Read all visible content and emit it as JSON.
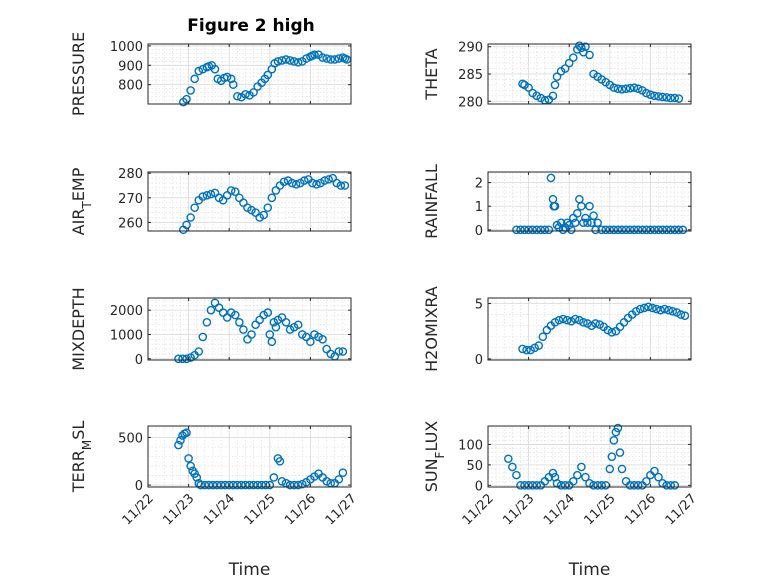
{
  "figure_title": "Figure 2 high",
  "colors": {
    "marker": "#0072bd",
    "axis": "#262626",
    "grid": "#d9d9d9"
  },
  "x_tick_labels": [
    "11/22",
    "11/23",
    "11/24",
    "11/25",
    "11/26",
    "11/27"
  ],
  "chart_data": [
    {
      "type": "scatter",
      "ylabel": "PRESSURE",
      "xlabel": "",
      "xlim": [
        0,
        5
      ],
      "ylim": [
        700,
        1010
      ],
      "yticks": [
        800,
        900,
        1000
      ],
      "yticklabels": [
        "800",
        "900",
        "1000"
      ],
      "grid": "major+minor",
      "show_xticklabels": false,
      "x": [
        0.87,
        0.95,
        1.05,
        1.15,
        1.25,
        1.35,
        1.45,
        1.5,
        1.57,
        1.65,
        1.72,
        1.8,
        1.88,
        1.95,
        2.05,
        2.1,
        2.2,
        2.3,
        2.4,
        2.5,
        2.6,
        2.7,
        2.8,
        2.88,
        2.95,
        3.05,
        3.12,
        3.2,
        3.3,
        3.4,
        3.5,
        3.6,
        3.7,
        3.8,
        3.9,
        4.0,
        4.05,
        4.1,
        4.2,
        4.3,
        4.4,
        4.5,
        4.6,
        4.7,
        4.8,
        4.85,
        4.9
      ],
      "y": [
        710,
        725,
        770,
        830,
        870,
        880,
        890,
        895,
        900,
        880,
        830,
        820,
        835,
        840,
        830,
        800,
        740,
        735,
        750,
        745,
        760,
        790,
        810,
        830,
        850,
        880,
        910,
        920,
        925,
        930,
        925,
        920,
        915,
        920,
        935,
        945,
        950,
        955,
        955,
        940,
        935,
        930,
        930,
        935,
        940,
        935,
        930
      ]
    },
    {
      "type": "scatter",
      "ylabel": "THETA",
      "xlabel": "",
      "xlim": [
        0,
        5
      ],
      "ylim": [
        279.5,
        290.5
      ],
      "yticks": [
        280,
        285,
        290
      ],
      "yticklabels": [
        "280",
        "285",
        "290"
      ],
      "grid": "major+minor",
      "show_xticklabels": false,
      "x": [
        0.85,
        0.9,
        1.0,
        1.1,
        1.2,
        1.3,
        1.4,
        1.5,
        1.6,
        1.65,
        1.7,
        1.8,
        1.9,
        2.0,
        2.1,
        2.2,
        2.25,
        2.3,
        2.35,
        2.4,
        2.5,
        2.6,
        2.7,
        2.8,
        2.9,
        3.0,
        3.1,
        3.2,
        3.3,
        3.4,
        3.5,
        3.6,
        3.7,
        3.8,
        3.9,
        4.0,
        4.1,
        4.2,
        4.3,
        4.4,
        4.5,
        4.6,
        4.7
      ],
      "y": [
        283.2,
        283.0,
        282.5,
        281.5,
        281.0,
        280.6,
        280.2,
        280.3,
        281.0,
        283.0,
        284.5,
        285.5,
        286.0,
        287.0,
        288.0,
        289.5,
        290.2,
        289.8,
        289.0,
        290.0,
        288.5,
        285.0,
        284.5,
        284.0,
        283.5,
        283.0,
        282.5,
        282.3,
        282.2,
        282.3,
        282.4,
        282.5,
        282.3,
        282.0,
        281.5,
        281.2,
        281.0,
        280.9,
        280.8,
        280.7,
        280.6,
        280.6,
        280.5
      ]
    },
    {
      "type": "scatter",
      "ylabel": "AIR_TEMP",
      "xlabel": "",
      "xlim": [
        0,
        5
      ],
      "ylim": [
        256.5,
        280.5
      ],
      "yticks": [
        260,
        270,
        280
      ],
      "yticklabels": [
        "260",
        "270",
        "280"
      ],
      "grid": "major+minor",
      "show_xticklabels": false,
      "x": [
        0.87,
        0.95,
        1.05,
        1.15,
        1.25,
        1.35,
        1.45,
        1.55,
        1.65,
        1.75,
        1.85,
        1.95,
        2.05,
        2.15,
        2.25,
        2.35,
        2.45,
        2.55,
        2.65,
        2.75,
        2.85,
        2.95,
        3.05,
        3.15,
        3.25,
        3.35,
        3.45,
        3.55,
        3.65,
        3.75,
        3.85,
        3.95,
        4.05,
        4.15,
        4.25,
        4.35,
        4.45,
        4.55,
        4.65,
        4.75,
        4.85
      ],
      "y": [
        257,
        259,
        262,
        266,
        269,
        270.5,
        271,
        271.5,
        272,
        270,
        269,
        271,
        273,
        272.5,
        270,
        268,
        266,
        265,
        264,
        262,
        263,
        266,
        270,
        273,
        275,
        276.5,
        277,
        276,
        275.5,
        276,
        277,
        277.5,
        276,
        275.5,
        276,
        277,
        277.5,
        278,
        276,
        275,
        275
      ]
    },
    {
      "type": "scatter",
      "ylabel": "RAINFALL",
      "xlabel": "",
      "xlim": [
        0,
        5
      ],
      "ylim": [
        -0.05,
        2.45
      ],
      "yticks": [
        0,
        1,
        2
      ],
      "yticklabels": [
        "0",
        "1",
        "2"
      ],
      "grid": "major+minor",
      "show_xticklabels": false,
      "x": [
        0.7,
        0.8,
        0.9,
        1.0,
        1.1,
        1.2,
        1.3,
        1.4,
        1.5,
        1.55,
        1.6,
        1.62,
        1.65,
        1.7,
        1.75,
        1.8,
        1.85,
        1.9,
        1.95,
        2.0,
        2.05,
        2.1,
        2.15,
        2.2,
        2.25,
        2.3,
        2.35,
        2.4,
        2.45,
        2.5,
        2.55,
        2.6,
        2.65,
        2.7,
        2.8,
        2.9,
        3.0,
        3.1,
        3.2,
        3.3,
        3.4,
        3.5,
        3.6,
        3.7,
        3.8,
        3.9,
        4.0,
        4.1,
        4.2,
        4.3,
        4.4,
        4.5,
        4.6,
        4.7,
        4.8
      ],
      "y": [
        0,
        0,
        0,
        0,
        0,
        0,
        0,
        0,
        0,
        2.2,
        1.3,
        1.0,
        1.0,
        0.2,
        0.1,
        0.3,
        0,
        0.1,
        0.3,
        0.2,
        0,
        0.5,
        0.3,
        0.7,
        1.3,
        1.0,
        0.3,
        0.5,
        0.3,
        1.0,
        0.3,
        0.6,
        0,
        0.3,
        0,
        0,
        0,
        0,
        0,
        0,
        0,
        0,
        0,
        0,
        0,
        0,
        0,
        0,
        0,
        0,
        0,
        0,
        0,
        0,
        0
      ]
    },
    {
      "type": "scatter",
      "ylabel": "MIXDEPTH",
      "xlabel": "",
      "xlim": [
        0,
        5
      ],
      "ylim": [
        -50,
        2500
      ],
      "yticks": [
        0,
        1000,
        2000
      ],
      "yticklabels": [
        "0",
        "1000",
        "2000"
      ],
      "grid": "major+minor",
      "show_xticklabels": false,
      "x": [
        0.75,
        0.85,
        0.95,
        1.05,
        1.15,
        1.25,
        1.35,
        1.45,
        1.55,
        1.65,
        1.75,
        1.85,
        1.95,
        2.05,
        2.15,
        2.25,
        2.35,
        2.45,
        2.55,
        2.65,
        2.75,
        2.85,
        2.95,
        3.0,
        3.05,
        3.1,
        3.15,
        3.2,
        3.3,
        3.4,
        3.5,
        3.6,
        3.7,
        3.8,
        3.9,
        4.0,
        4.1,
        4.2,
        4.3,
        4.4,
        4.5,
        4.6,
        4.7,
        4.8
      ],
      "y": [
        0,
        0,
        0,
        50,
        150,
        300,
        900,
        1500,
        2000,
        2300,
        2100,
        1900,
        1700,
        1900,
        1800,
        1500,
        1200,
        800,
        1000,
        1400,
        1600,
        1800,
        1900,
        1000,
        700,
        1500,
        1300,
        1600,
        1700,
        1500,
        1200,
        1300,
        1400,
        1000,
        900,
        700,
        1000,
        900,
        800,
        400,
        200,
        100,
        300,
        300
      ]
    },
    {
      "type": "scatter",
      "ylabel": "H2OMIXRA",
      "xlabel": "",
      "xlim": [
        0,
        5
      ],
      "ylim": [
        -0.1,
        5.5
      ],
      "yticks": [
        0,
        5
      ],
      "yticklabels": [
        "0",
        "5"
      ],
      "grid": "major+minor",
      "show_xticklabels": false,
      "x": [
        0.85,
        0.95,
        1.05,
        1.15,
        1.25,
        1.35,
        1.45,
        1.55,
        1.65,
        1.75,
        1.85,
        1.95,
        2.05,
        2.15,
        2.25,
        2.35,
        2.45,
        2.55,
        2.65,
        2.75,
        2.85,
        2.95,
        3.05,
        3.15,
        3.25,
        3.35,
        3.45,
        3.55,
        3.65,
        3.75,
        3.85,
        3.95,
        4.05,
        4.15,
        4.25,
        4.35,
        4.45,
        4.55,
        4.65,
        4.75,
        4.85
      ],
      "y": [
        0.9,
        0.8,
        0.8,
        1.0,
        1.2,
        2.0,
        2.6,
        3.0,
        3.3,
        3.5,
        3.6,
        3.5,
        3.4,
        3.6,
        3.5,
        3.3,
        3.2,
        3.0,
        3.2,
        3.1,
        2.9,
        2.6,
        2.4,
        2.5,
        2.9,
        3.3,
        3.7,
        4.0,
        4.3,
        4.5,
        4.6,
        4.7,
        4.6,
        4.5,
        4.4,
        4.5,
        4.4,
        4.3,
        4.2,
        4.0,
        3.9
      ]
    },
    {
      "type": "scatter",
      "ylabel": "TERR_MSL",
      "xlabel": "Time",
      "xlim": [
        0,
        5
      ],
      "ylim": [
        -20,
        620
      ],
      "yticks": [
        0,
        500
      ],
      "yticklabels": [
        "0",
        "500"
      ],
      "grid": "major+minor",
      "show_xticklabels": true,
      "x": [
        0.75,
        0.8,
        0.85,
        0.9,
        0.95,
        1.0,
        1.05,
        1.1,
        1.15,
        1.2,
        1.25,
        1.3,
        1.4,
        1.5,
        1.6,
        1.7,
        1.8,
        1.9,
        2.0,
        2.1,
        2.2,
        2.3,
        2.4,
        2.5,
        2.6,
        2.7,
        2.8,
        2.9,
        3.0,
        3.1,
        3.2,
        3.25,
        3.3,
        3.4,
        3.5,
        3.6,
        3.7,
        3.8,
        3.9,
        4.0,
        4.1,
        4.2,
        4.3,
        4.4,
        4.5,
        4.6,
        4.7,
        4.8
      ],
      "y": [
        420,
        470,
        520,
        540,
        550,
        280,
        200,
        150,
        120,
        80,
        20,
        0,
        0,
        0,
        0,
        0,
        0,
        0,
        0,
        0,
        0,
        0,
        0,
        0,
        0,
        0,
        0,
        0,
        0,
        80,
        280,
        250,
        40,
        20,
        0,
        0,
        0,
        10,
        30,
        60,
        90,
        120,
        80,
        40,
        20,
        20,
        60,
        130
      ]
    },
    {
      "type": "scatter",
      "ylabel": "SUN_FLUX",
      "xlabel": "Time",
      "xlim": [
        0,
        5
      ],
      "ylim": [
        -4,
        145
      ],
      "yticks": [
        0,
        50,
        100
      ],
      "yticklabels": [
        "0",
        "50",
        "100"
      ],
      "grid": "major+minor",
      "show_xticklabels": true,
      "x": [
        0.5,
        0.6,
        0.7,
        0.8,
        0.9,
        1.0,
        1.1,
        1.2,
        1.3,
        1.4,
        1.5,
        1.6,
        1.65,
        1.7,
        1.8,
        1.9,
        2.0,
        2.1,
        2.2,
        2.3,
        2.4,
        2.5,
        2.6,
        2.7,
        2.8,
        2.9,
        3.0,
        3.05,
        3.1,
        3.15,
        3.2,
        3.25,
        3.3,
        3.4,
        3.5,
        3.6,
        3.7,
        3.8,
        3.9,
        4.0,
        4.1,
        4.2,
        4.3,
        4.4,
        4.5,
        4.6
      ],
      "y": [
        65,
        45,
        25,
        0,
        0,
        0,
        0,
        0,
        0,
        10,
        20,
        30,
        20,
        5,
        0,
        0,
        0,
        10,
        25,
        45,
        20,
        5,
        0,
        0,
        0,
        0,
        40,
        70,
        110,
        130,
        140,
        80,
        40,
        10,
        0,
        0,
        0,
        0,
        10,
        25,
        35,
        20,
        5,
        0,
        0,
        0
      ]
    }
  ]
}
